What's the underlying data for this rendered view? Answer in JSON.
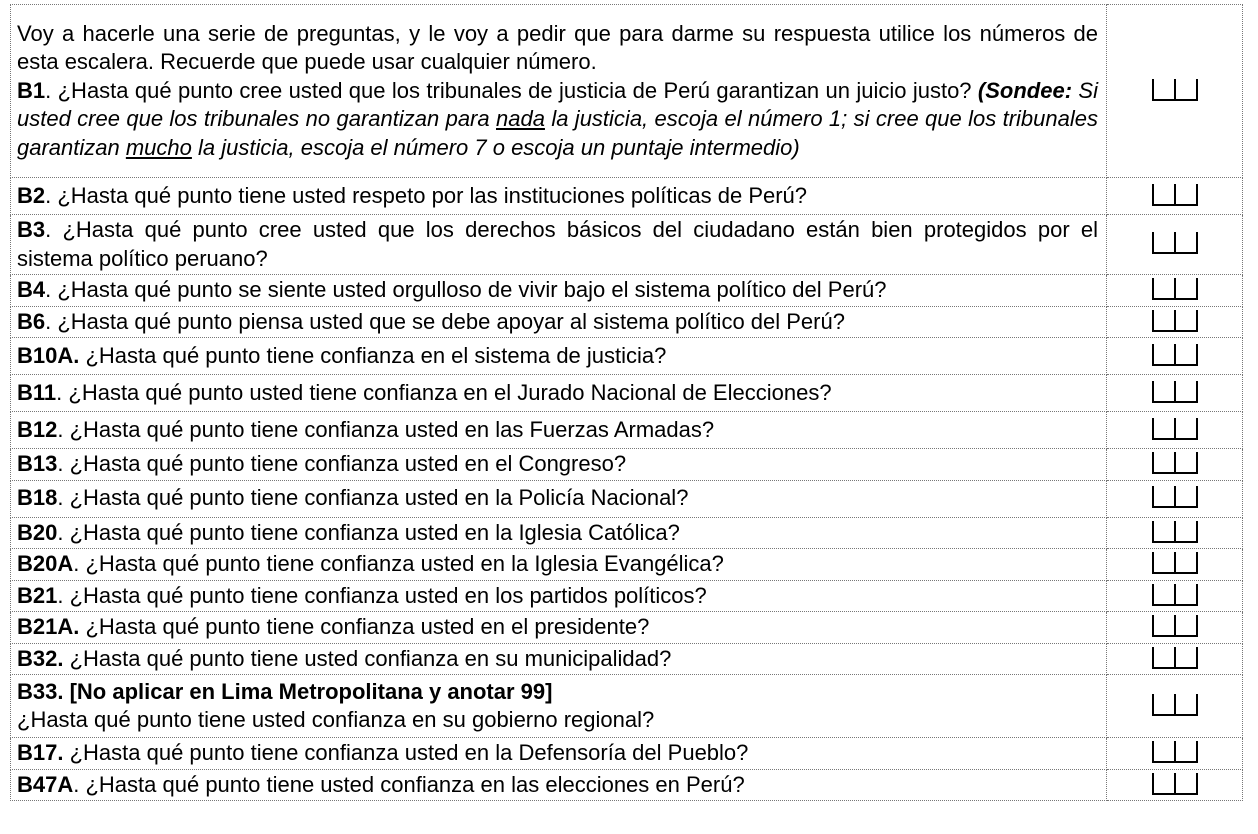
{
  "intro": "Voy a hacerle una serie de preguntas, y le voy a pedir que para darme su respuesta utilice los números de esta escalera. Recuerde que puede usar cualquier número.",
  "b1": {
    "code": "B1",
    "text": ". ¿Hasta qué punto cree usted que los tribunales de justicia de Perú garantizan un juicio justo? ",
    "probe_label": "(Sondee:",
    "probe_a": " Si usted cree que los tribunales no garantizan para ",
    "probe_u1": "nada",
    "probe_b": " la justicia, escoja el número 1; si cree que los tribunales garantizan ",
    "probe_u2": "mucho",
    "probe_c": " la justicia, escoja el número 7 o escoja un puntaje intermedio)"
  },
  "rows": [
    {
      "code": "B2",
      "text": ". ¿Hasta qué punto tiene usted respeto por las instituciones políticas de Perú?"
    },
    {
      "code": "B3",
      "text": ". ¿Hasta qué punto cree usted que los derechos básicos del ciudadano están bien protegidos por el sistema político peruano?"
    },
    {
      "code": "B4",
      "text": ". ¿Hasta qué punto se siente usted orgulloso de vivir bajo el sistema político del Perú?"
    },
    {
      "code": "B6",
      "text": ". ¿Hasta qué punto piensa usted que se debe apoyar al sistema político del Perú?"
    },
    {
      "code": "B10A.",
      "text": " ¿Hasta qué punto tiene confianza en el sistema de justicia?"
    },
    {
      "code": "B11",
      "text": ". ¿Hasta qué punto usted tiene confianza en el Jurado Nacional de Elecciones?"
    },
    {
      "code": "B12",
      "text": ". ¿Hasta qué punto tiene confianza usted en las Fuerzas Armadas?"
    },
    {
      "code": "B13",
      "text": ". ¿Hasta qué punto tiene confianza usted en el Congreso?"
    },
    {
      "code": "B18",
      "text": ". ¿Hasta qué punto tiene confianza usted en la Policía Nacional?"
    },
    {
      "code": "B20",
      "text": ". ¿Hasta qué punto tiene confianza usted en la Iglesia Católica?"
    },
    {
      "code": "B20A",
      "text": ". ¿Hasta qué punto tiene confianza usted en la Iglesia Evangélica?"
    },
    {
      "code": "B21",
      "text": ". ¿Hasta qué punto tiene confianza usted en los partidos políticos?"
    },
    {
      "code": "B21A.",
      "text": " ¿Hasta qué punto tiene confianza usted en el presidente?"
    },
    {
      "code": "B32.",
      "text": " ¿Hasta qué punto tiene usted confianza en su municipalidad?"
    },
    {
      "code": "B33. [No aplicar en Lima Metropolitana y anotar 99]",
      "text": "¿Hasta qué punto tiene usted confianza en su gobierno regional?"
    },
    {
      "code": "B17.",
      "text": " ¿Hasta qué punto tiene confianza usted en la Defensoría del Pueblo?"
    },
    {
      "code": "B47A",
      "text": ". ¿Hasta qué punto tiene usted confianza en las elecciones en Perú?"
    }
  ]
}
